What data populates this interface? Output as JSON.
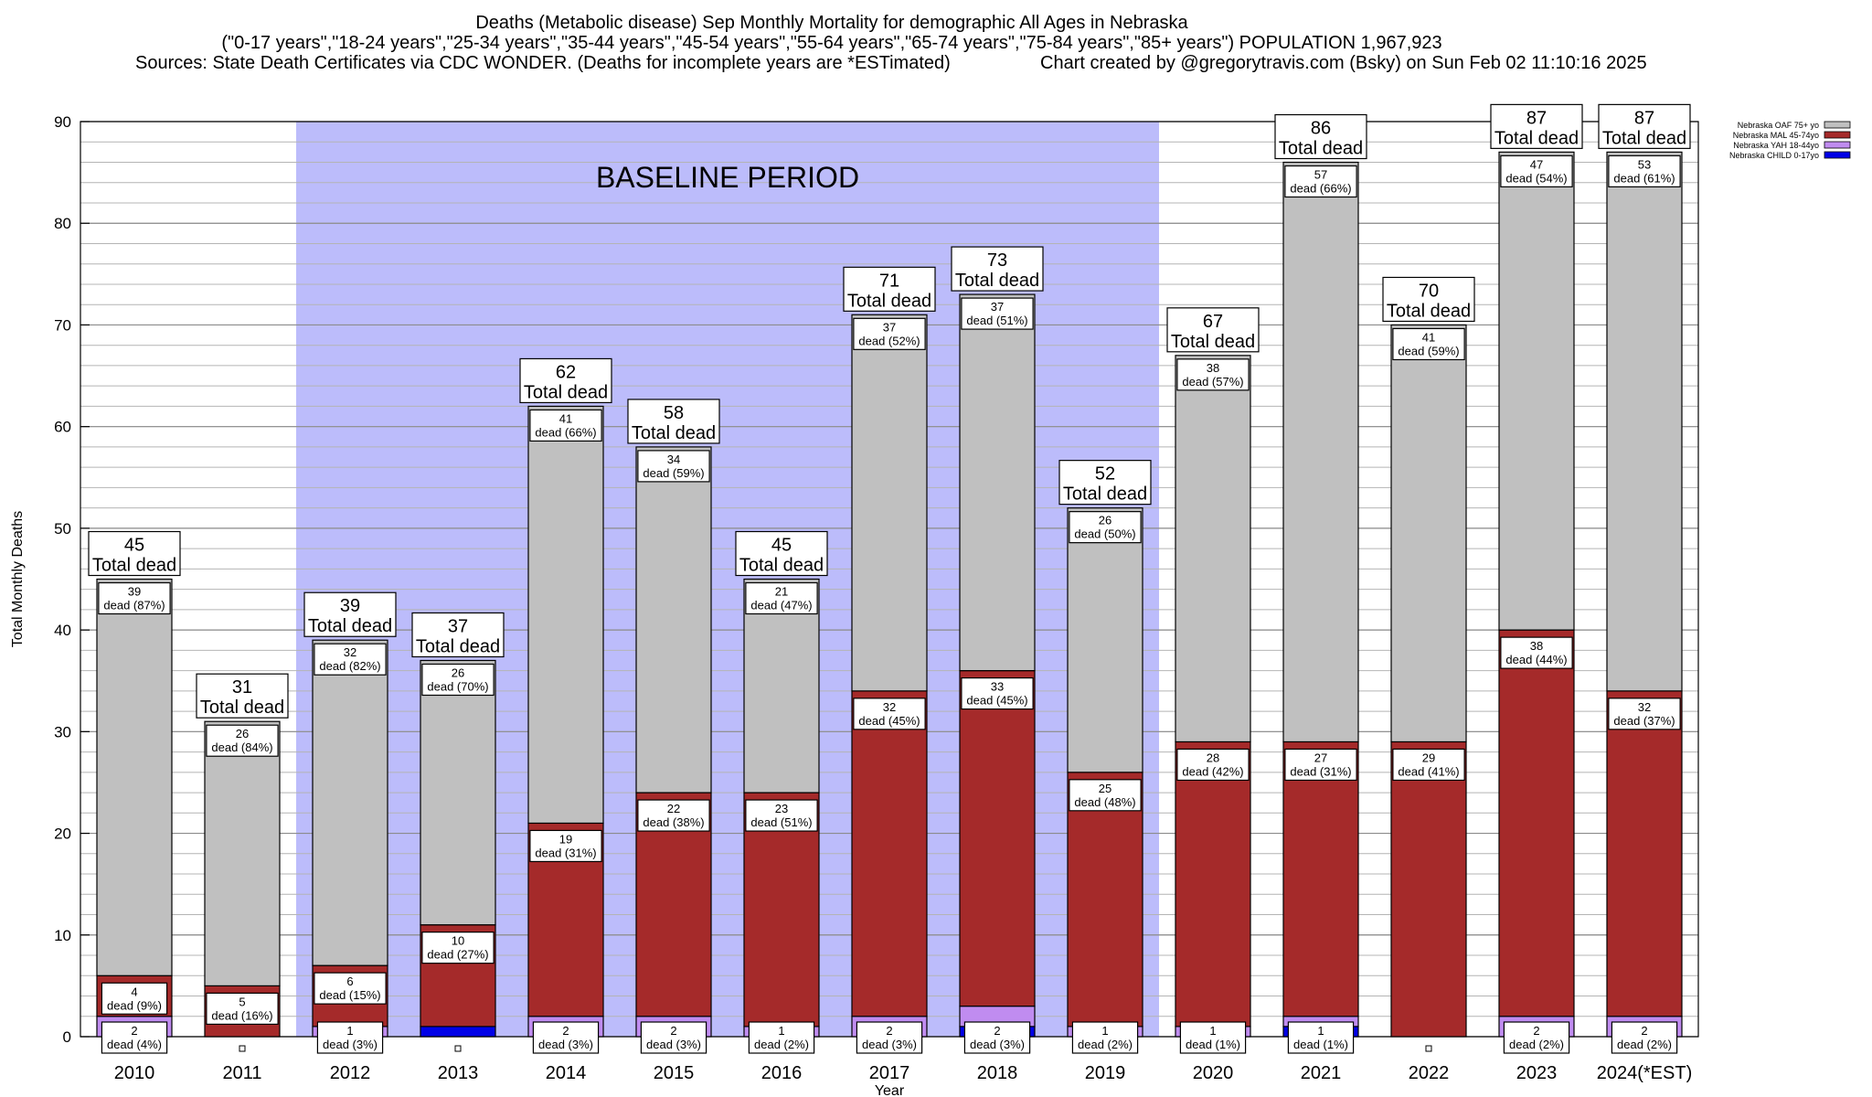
{
  "header": {
    "title": "Deaths (Metabolic disease) Sep Monthly Mortality for demographic All Ages in Nebraska",
    "subtitle": "(\"0-17 years\",\"18-24 years\",\"25-34 years\",\"35-44 years\",\"45-54 years\",\"55-64 years\",\"65-74 years\",\"75-84 years\",\"85+ years\") POPULATION 1,967,923",
    "sources": "Sources: State Death Certificates via CDC WONDER. (Deaths for incomplete years are *ESTimated)",
    "credit": "Chart created by @gregorytravis.com (Bsky) on Sun Feb 02 11:10:16 2025"
  },
  "chart_data": {
    "type": "bar",
    "stacked": true,
    "xlabel": "Year",
    "ylabel": "Total Monthly Deaths",
    "ylim": [
      0,
      90
    ],
    "yticks": [
      0,
      10,
      20,
      30,
      40,
      50,
      60,
      70,
      80,
      90
    ],
    "minor_grid_step": 2,
    "grid": true,
    "legend_position": "top-right",
    "baseline_label": "BASELINE PERIOD",
    "baseline_range": [
      "2012",
      "2019"
    ],
    "total_suffix": "Total dead",
    "dead_word": "dead",
    "categories": [
      "2010",
      "2011",
      "2012",
      "2013",
      "2014",
      "2015",
      "2016",
      "2017",
      "2018",
      "2019",
      "2020",
      "2021",
      "2022",
      "2023",
      "2024(*EST)"
    ],
    "totals": [
      45,
      31,
      39,
      37,
      62,
      58,
      45,
      71,
      73,
      52,
      67,
      86,
      70,
      87,
      87
    ],
    "series": [
      {
        "name": "Nebraska CHILD 0-17yo",
        "color": "#0000e6",
        "values": [
          0,
          0,
          0,
          1,
          0,
          0,
          0,
          0,
          1,
          0,
          0,
          1,
          0,
          0,
          0
        ],
        "pct": [
          "",
          "",
          "",
          "",
          "",
          "",
          "",
          "",
          "",
          "",
          "",
          "",
          "",
          "",
          ""
        ]
      },
      {
        "name": "Nebraska YAH 18-44yo",
        "color": "#c08cf0",
        "values": [
          2,
          0,
          1,
          0,
          2,
          2,
          1,
          2,
          2,
          1,
          1,
          1,
          0,
          2,
          2
        ],
        "pct": [
          "4%",
          "",
          "3%",
          "",
          "3%",
          "3%",
          "2%",
          "3%",
          "3%",
          "2%",
          "1%",
          "1%",
          "",
          "2%",
          "2%"
        ]
      },
      {
        "name": "Nebraska MAL 45-74yo",
        "color": "#a52a2a",
        "values": [
          4,
          5,
          6,
          10,
          19,
          22,
          23,
          32,
          33,
          25,
          28,
          27,
          29,
          38,
          32
        ],
        "pct": [
          "9%",
          "16%",
          "15%",
          "27%",
          "31%",
          "38%",
          "51%",
          "45%",
          "45%",
          "48%",
          "42%",
          "31%",
          "41%",
          "44%",
          "37%"
        ]
      },
      {
        "name": "Nebraska OAF 75+ yo",
        "color": "#c0c0c0",
        "values": [
          39,
          26,
          32,
          26,
          41,
          34,
          21,
          37,
          37,
          26,
          38,
          57,
          41,
          47,
          53
        ],
        "pct": [
          "87%",
          "84%",
          "82%",
          "70%",
          "66%",
          "59%",
          "47%",
          "52%",
          "51%",
          "50%",
          "57%",
          "66%",
          "59%",
          "54%",
          "61%"
        ]
      }
    ]
  }
}
